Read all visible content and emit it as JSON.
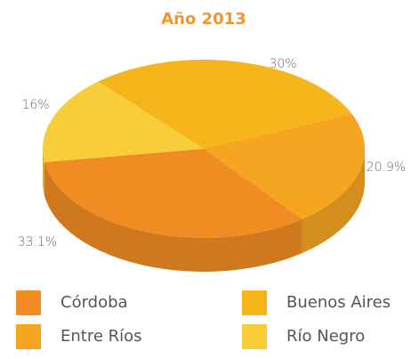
{
  "chart_data": {
    "type": "pie",
    "title": "Año 2013",
    "categories": [
      "Córdoba",
      "Buenos Aires",
      "Entre Ríos",
      "Río Negro"
    ],
    "values": [
      33.1,
      30,
      20.9,
      16
    ],
    "value_labels": [
      "33.1%",
      "30%",
      "20.9%",
      "16%"
    ],
    "colors": [
      "#f18c22",
      "#f5b51b",
      "#f5a51f",
      "#f8cd3a"
    ],
    "legend": "bottom"
  }
}
